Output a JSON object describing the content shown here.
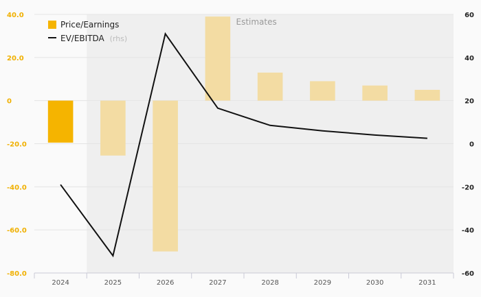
{
  "chart_data": {
    "type": "bar",
    "categories": [
      "2024",
      "2025",
      "2026",
      "2027",
      "2028",
      "2029",
      "2030",
      "2031"
    ],
    "series": [
      {
        "name": "Price/Earnings",
        "type": "bar",
        "axis": "left",
        "values": [
          -19.5,
          -25.5,
          -70.0,
          39.0,
          13.0,
          9.0,
          7.0,
          5.0
        ],
        "color": "#f5b400",
        "estimate_color": "#f3dca3"
      },
      {
        "name": "EV/EBITDA",
        "type": "line",
        "axis": "right",
        "values": [
          -19.0,
          -52.0,
          51.0,
          16.5,
          8.5,
          6.0,
          4.0,
          2.5
        ],
        "color": "#111111"
      }
    ],
    "legend": {
      "items": [
        {
          "label": "Price/Earnings",
          "suffix": ""
        },
        {
          "label": "EV/EBITDA",
          "suffix": "(rhs)"
        }
      ],
      "position": "top-left"
    },
    "estimates_label": "Estimates",
    "estimates_start_index": 1,
    "y_left": {
      "ylim": [
        -80,
        40
      ],
      "ticks": [
        40,
        20,
        0,
        -20,
        -40,
        -60,
        -80
      ],
      "tick_labels": [
        "40.0",
        "20.0",
        "0",
        "-20.0",
        "-40.0",
        "-60.0",
        "-80.0"
      ]
    },
    "y_right": {
      "ylim": [
        -60,
        60
      ],
      "ticks": [
        60,
        40,
        20,
        0,
        -20,
        -40,
        -60
      ],
      "tick_labels": [
        "60",
        "40",
        "20",
        "0",
        "-20",
        "-40",
        "-60"
      ]
    },
    "grid": true
  }
}
